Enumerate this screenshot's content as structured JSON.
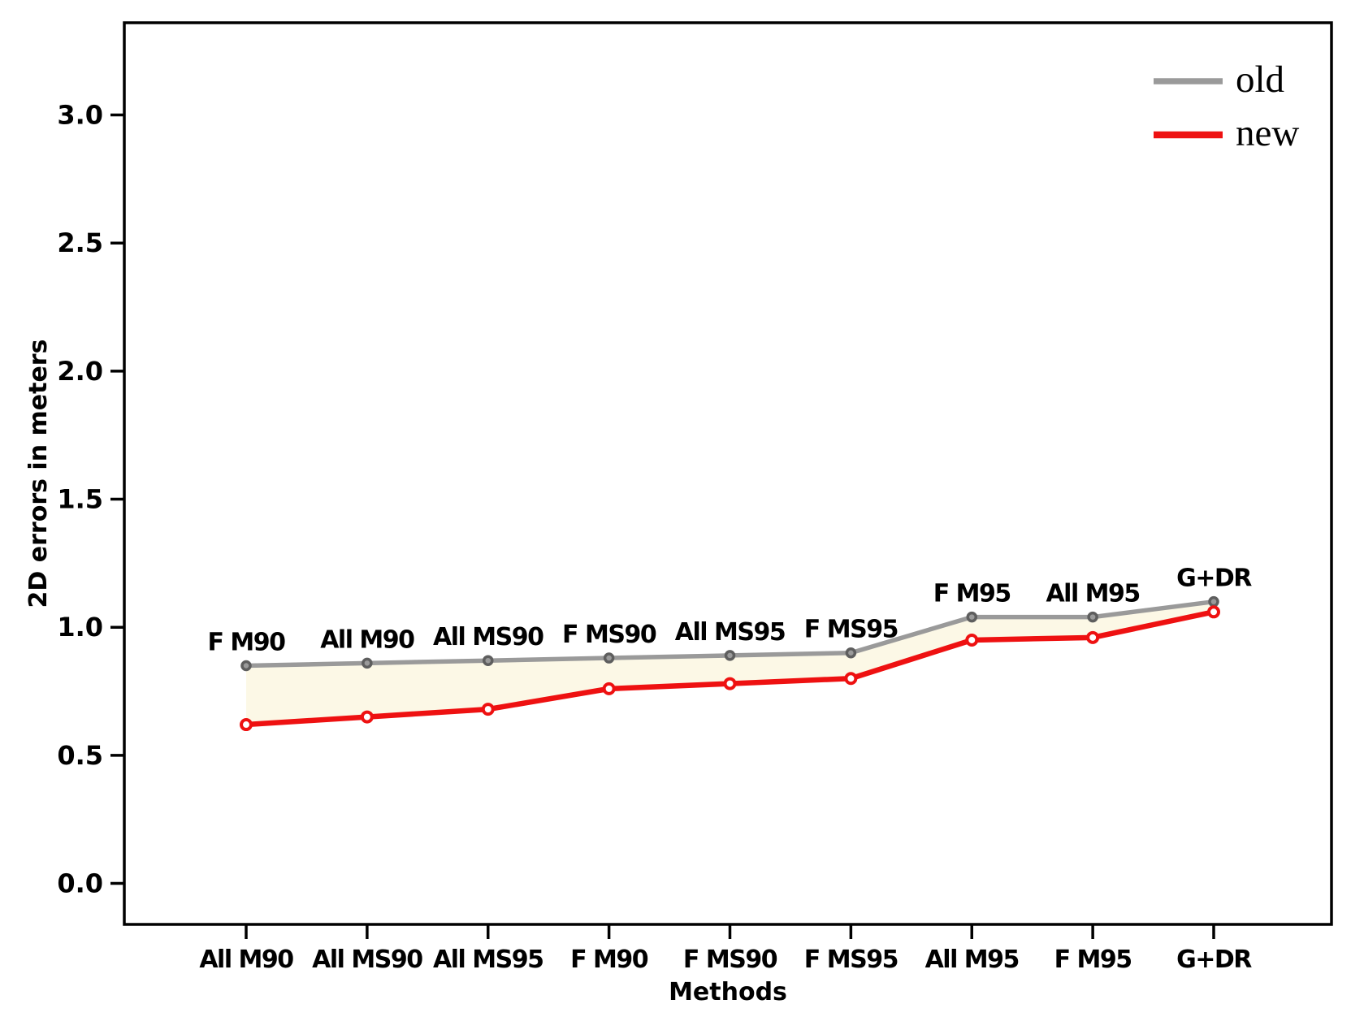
{
  "figure": {
    "background": "#ffffff",
    "axis_color": "#000000"
  },
  "chart_data": {
    "type": "line",
    "title": "",
    "xlabel": "Methods",
    "ylabel": "2D errors in meters",
    "categories": [
      "All M90",
      "All MS90",
      "All MS95",
      "F M90",
      "F MS90",
      "F MS95",
      "All M95",
      "F M95",
      "G+DR"
    ],
    "ytick_labels": [
      "0.0",
      "0.5",
      "1.0",
      "1.5",
      "2.0",
      "2.5",
      "3.0"
    ],
    "ylim": [
      -0.16,
      3.36
    ],
    "grid": false,
    "legend": {
      "position": "upper right",
      "frame": false,
      "entries": [
        {
          "label": "old",
          "color": "#9a9a9a"
        },
        {
          "label": "new",
          "color": "#ee1111"
        }
      ]
    },
    "series": [
      {
        "name": "old",
        "color": "#9a9a9a",
        "marker": "o",
        "marker_edge_color": "#5e5e5e",
        "marker_face_color": "#9a9a9a",
        "values": [
          0.85,
          0.86,
          0.87,
          0.88,
          0.89,
          0.9,
          1.04,
          1.04,
          1.1
        ],
        "point_labels": [
          "F M90",
          "All M90",
          "All MS90",
          "F MS90",
          "All MS95",
          "F MS95",
          "F M95",
          "All M95",
          "G+DR"
        ],
        "point_label_color": "#9a9a9a"
      },
      {
        "name": "new",
        "color": "#ee1111",
        "marker": "o",
        "marker_edge_color": "#ee1111",
        "marker_face_color": "#ffffff",
        "values": [
          0.62,
          0.65,
          0.68,
          0.76,
          0.78,
          0.8,
          0.95,
          0.96,
          1.06
        ],
        "point_labels": [],
        "point_label_color": "#9a9a9a"
      }
    ],
    "fill_between": {
      "between": [
        "old",
        "new"
      ],
      "color": "#fcf8e6"
    }
  }
}
